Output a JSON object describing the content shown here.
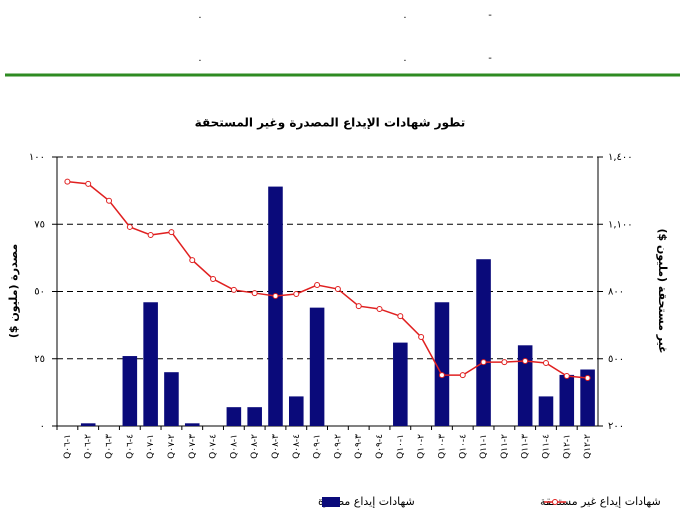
{
  "header": {
    "rows": [
      [
        ".",
        ".",
        "-"
      ],
      [
        ".",
        ".",
        "-"
      ]
    ]
  },
  "chart_data": {
    "type": "bar_line",
    "title": "تطور شهادات الإيداع المصدرة وغير المستحقة",
    "y_label": "مصدرة (مليون $)",
    "y2_label": "غير مستحقة (مليون $)",
    "categories": [
      "Q١-٠٦",
      "Q٢-٠٦",
      "Q٣-٠٦",
      "Q٤-٠٦",
      "Q١-٠٧",
      "Q٢-٠٧",
      "Q٣-٠٧",
      "Q٤-٠٧",
      "Q١-٠٨",
      "Q٢-٠٨",
      "Q٣-٠٨",
      "Q٤-٠٨",
      "Q١-٠٩",
      "Q٢-٠٩",
      "Q٣-٠٩",
      "Q٤-٠٩",
      "Q١-١٠",
      "Q٢-١٠",
      "Q٣-١٠",
      "Q٤-١٠",
      "Q١-١١",
      "Q٢-١١",
      "Q٣-١١",
      "Q٤-١١",
      "Q١-١٢",
      "Q٢-١٢"
    ],
    "series": [
      {
        "name": "شهادات إيداع مصدرة",
        "type": "bar",
        "color": "#0a0a7a",
        "values": [
          0,
          1,
          0,
          26,
          46,
          20,
          1,
          0,
          7,
          7,
          89,
          11,
          44,
          0,
          0,
          0,
          31,
          0,
          46,
          0,
          62,
          0,
          30,
          11,
          19,
          21
        ]
      },
      {
        "name": "شهادات إيداع غير مستحقة",
        "type": "line",
        "axis": "y2",
        "color": "#e02020",
        "values": [
          1290,
          1280,
          1205,
          1088,
          1052,
          1065,
          940,
          856,
          807,
          793,
          780,
          789,
          829,
          811,
          735,
          722,
          690,
          597,
          427,
          427,
          485,
          485,
          490,
          481,
          423,
          414
        ]
      }
    ],
    "ylim": [
      0,
      100
    ],
    "yticks": [
      {
        "value": 0,
        "label": "٠"
      },
      {
        "value": 25,
        "label": "٢٥"
      },
      {
        "value": 50,
        "label": "٥٠"
      },
      {
        "value": 75,
        "label": "٧٥"
      },
      {
        "value": 100,
        "label": "١٠٠"
      }
    ],
    "y2lim": [
      200,
      1400
    ],
    "y2ticks": [
      {
        "value": 200,
        "label": "٢٠٠"
      },
      {
        "value": 500,
        "label": "٥٠٠"
      },
      {
        "value": 800,
        "label": "٨٠٠"
      },
      {
        "value": 1100,
        "label": "١,١٠٠"
      },
      {
        "value": 1400,
        "label": "١,٤٠٠"
      }
    ],
    "grid": true
  }
}
